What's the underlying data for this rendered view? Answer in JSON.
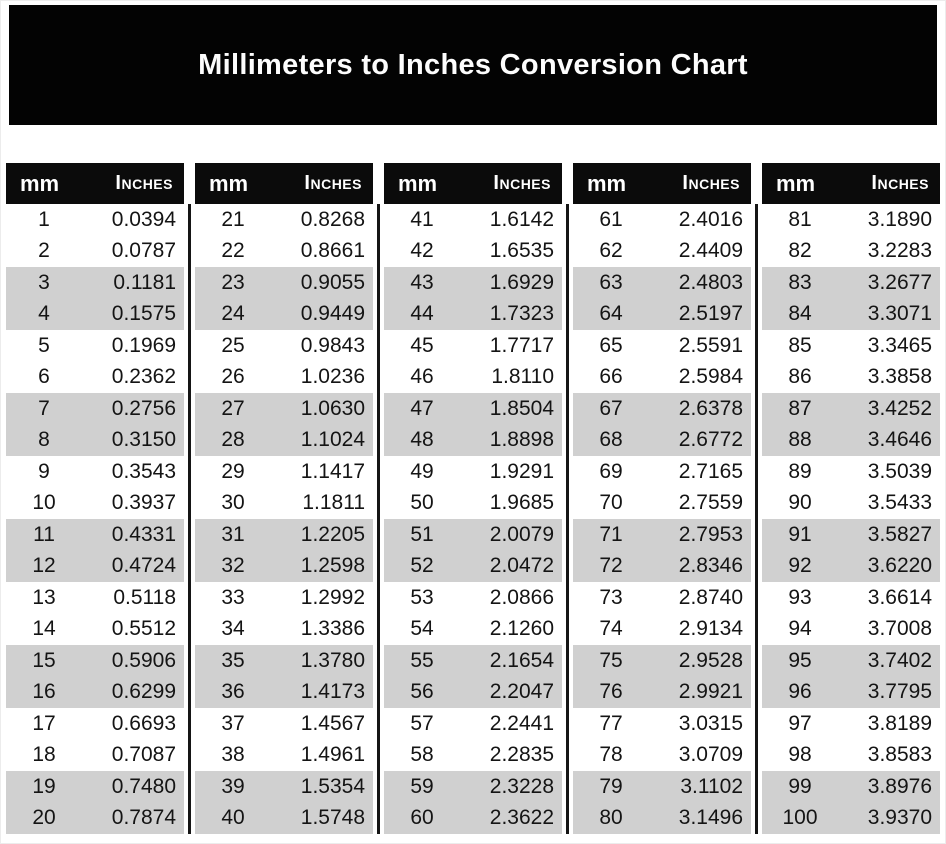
{
  "title": "Millimeters to Inches Conversion Chart",
  "column_headers": {
    "mm": "mm",
    "inches": "Inches"
  },
  "colors": {
    "banner_bg": "#030303",
    "header_bg": "#0b0b0b",
    "header_text": "#ffffff",
    "row_alt_bg": "#d0d0d0",
    "text": "#141414",
    "divider": "#151515",
    "page_bg": "#ffffff"
  },
  "tables": [
    {
      "rows": [
        {
          "mm": "1",
          "inches": "0.0394"
        },
        {
          "mm": "2",
          "inches": "0.0787"
        },
        {
          "mm": "3",
          "inches": "0.1181"
        },
        {
          "mm": "4",
          "inches": "0.1575"
        },
        {
          "mm": "5",
          "inches": "0.1969"
        },
        {
          "mm": "6",
          "inches": "0.2362"
        },
        {
          "mm": "7",
          "inches": "0.2756"
        },
        {
          "mm": "8",
          "inches": "0.3150"
        },
        {
          "mm": "9",
          "inches": "0.3543"
        },
        {
          "mm": "10",
          "inches": "0.3937"
        },
        {
          "mm": "11",
          "inches": "0.4331"
        },
        {
          "mm": "12",
          "inches": "0.4724"
        },
        {
          "mm": "13",
          "inches": "0.5118"
        },
        {
          "mm": "14",
          "inches": "0.5512"
        },
        {
          "mm": "15",
          "inches": "0.5906"
        },
        {
          "mm": "16",
          "inches": "0.6299"
        },
        {
          "mm": "17",
          "inches": "0.6693"
        },
        {
          "mm": "18",
          "inches": "0.7087"
        },
        {
          "mm": "19",
          "inches": "0.7480"
        },
        {
          "mm": "20",
          "inches": "0.7874"
        }
      ]
    },
    {
      "rows": [
        {
          "mm": "21",
          "inches": "0.8268"
        },
        {
          "mm": "22",
          "inches": "0.8661"
        },
        {
          "mm": "23",
          "inches": "0.9055"
        },
        {
          "mm": "24",
          "inches": "0.9449"
        },
        {
          "mm": "25",
          "inches": "0.9843"
        },
        {
          "mm": "26",
          "inches": "1.0236"
        },
        {
          "mm": "27",
          "inches": "1.0630"
        },
        {
          "mm": "28",
          "inches": "1.1024"
        },
        {
          "mm": "29",
          "inches": "1.1417"
        },
        {
          "mm": "30",
          "inches": "1.1811"
        },
        {
          "mm": "31",
          "inches": "1.2205"
        },
        {
          "mm": "32",
          "inches": "1.2598"
        },
        {
          "mm": "33",
          "inches": "1.2992"
        },
        {
          "mm": "34",
          "inches": "1.3386"
        },
        {
          "mm": "35",
          "inches": "1.3780"
        },
        {
          "mm": "36",
          "inches": "1.4173"
        },
        {
          "mm": "37",
          "inches": "1.4567"
        },
        {
          "mm": "38",
          "inches": "1.4961"
        },
        {
          "mm": "39",
          "inches": "1.5354"
        },
        {
          "mm": "40",
          "inches": "1.5748"
        }
      ]
    },
    {
      "rows": [
        {
          "mm": "41",
          "inches": "1.6142"
        },
        {
          "mm": "42",
          "inches": "1.6535"
        },
        {
          "mm": "43",
          "inches": "1.6929"
        },
        {
          "mm": "44",
          "inches": "1.7323"
        },
        {
          "mm": "45",
          "inches": "1.7717"
        },
        {
          "mm": "46",
          "inches": "1.8110"
        },
        {
          "mm": "47",
          "inches": "1.8504"
        },
        {
          "mm": "48",
          "inches": "1.8898"
        },
        {
          "mm": "49",
          "inches": "1.9291"
        },
        {
          "mm": "50",
          "inches": "1.9685"
        },
        {
          "mm": "51",
          "inches": "2.0079"
        },
        {
          "mm": "52",
          "inches": "2.0472"
        },
        {
          "mm": "53",
          "inches": "2.0866"
        },
        {
          "mm": "54",
          "inches": "2.1260"
        },
        {
          "mm": "55",
          "inches": "2.1654"
        },
        {
          "mm": "56",
          "inches": "2.2047"
        },
        {
          "mm": "57",
          "inches": "2.2441"
        },
        {
          "mm": "58",
          "inches": "2.2835"
        },
        {
          "mm": "59",
          "inches": "2.3228"
        },
        {
          "mm": "60",
          "inches": "2.3622"
        }
      ]
    },
    {
      "rows": [
        {
          "mm": "61",
          "inches": "2.4016"
        },
        {
          "mm": "62",
          "inches": "2.4409"
        },
        {
          "mm": "63",
          "inches": "2.4803"
        },
        {
          "mm": "64",
          "inches": "2.5197"
        },
        {
          "mm": "65",
          "inches": "2.5591"
        },
        {
          "mm": "66",
          "inches": "2.5984"
        },
        {
          "mm": "67",
          "inches": "2.6378"
        },
        {
          "mm": "68",
          "inches": "2.6772"
        },
        {
          "mm": "69",
          "inches": "2.7165"
        },
        {
          "mm": "70",
          "inches": "2.7559"
        },
        {
          "mm": "71",
          "inches": "2.7953"
        },
        {
          "mm": "72",
          "inches": "2.8346"
        },
        {
          "mm": "73",
          "inches": "2.8740"
        },
        {
          "mm": "74",
          "inches": "2.9134"
        },
        {
          "mm": "75",
          "inches": "2.9528"
        },
        {
          "mm": "76",
          "inches": "2.9921"
        },
        {
          "mm": "77",
          "inches": "3.0315"
        },
        {
          "mm": "78",
          "inches": "3.0709"
        },
        {
          "mm": "79",
          "inches": "3.1102"
        },
        {
          "mm": "80",
          "inches": "3.1496"
        }
      ]
    },
    {
      "rows": [
        {
          "mm": "81",
          "inches": "3.1890"
        },
        {
          "mm": "82",
          "inches": "3.2283"
        },
        {
          "mm": "83",
          "inches": "3.2677"
        },
        {
          "mm": "84",
          "inches": "3.3071"
        },
        {
          "mm": "85",
          "inches": "3.3465"
        },
        {
          "mm": "86",
          "inches": "3.3858"
        },
        {
          "mm": "87",
          "inches": "3.4252"
        },
        {
          "mm": "88",
          "inches": "3.4646"
        },
        {
          "mm": "89",
          "inches": "3.5039"
        },
        {
          "mm": "90",
          "inches": "3.5433"
        },
        {
          "mm": "91",
          "inches": "3.5827"
        },
        {
          "mm": "92",
          "inches": "3.6220"
        },
        {
          "mm": "93",
          "inches": "3.6614"
        },
        {
          "mm": "94",
          "inches": "3.7008"
        },
        {
          "mm": "95",
          "inches": "3.7402"
        },
        {
          "mm": "96",
          "inches": "3.7795"
        },
        {
          "mm": "97",
          "inches": "3.8189"
        },
        {
          "mm": "98",
          "inches": "3.8583"
        },
        {
          "mm": "99",
          "inches": "3.8976"
        },
        {
          "mm": "100",
          "inches": "3.9370"
        }
      ]
    }
  ]
}
